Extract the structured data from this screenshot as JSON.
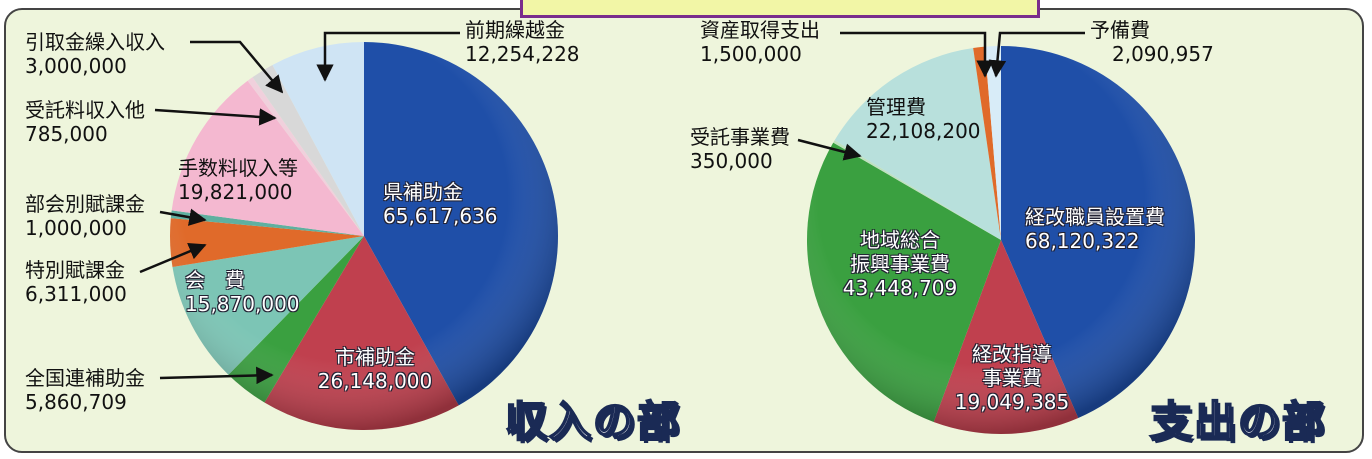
{
  "chart_data": [
    {
      "type": "pie",
      "title": "収入の部",
      "categories": [
        "県補助金",
        "市補助金",
        "全国連補助金",
        "会　費",
        "特別賦課金",
        "部会別賦課金",
        "手数料収入等",
        "受託料収入他",
        "引取金繰入収入",
        "前期繰越金"
      ],
      "values": [
        65617636,
        26148000,
        5860709,
        15870000,
        6311000,
        1000000,
        19821000,
        785000,
        3000000,
        12254228
      ],
      "value_labels": [
        "65,617,636",
        "26,148,000",
        "5,860,709",
        "15,870,000",
        "6,311,000",
        "1,000,000",
        "19,821,000",
        "785,000",
        "3,000,000",
        "12,254,228"
      ],
      "colors": [
        "#1f4fa8",
        "#c0404e",
        "#3aa040",
        "#7cc5b5",
        "#e06a2a",
        "#5fb0a0",
        "#f4b8d0",
        "#f0d0dc",
        "#d8d8d8",
        "#cfe4f4"
      ]
    },
    {
      "type": "pie",
      "title": "支出の部",
      "categories": [
        "経改職員設置費",
        "経改指導\n事業費",
        "地域総合\n振興事業費",
        "受託事業費",
        "管理費",
        "資産取得支出",
        "予備費"
      ],
      "values": [
        68120322,
        19049385,
        43448709,
        350000,
        22108200,
        1500000,
        2090957
      ],
      "value_labels": [
        "68,120,322",
        "19,049,385",
        "43,448,709",
        "350,000",
        "22,108,200",
        "1,500,000",
        "2,090,957"
      ],
      "colors": [
        "#1f4fa8",
        "#c0404e",
        "#3aa040",
        "#bfe0c0",
        "#b8e0dc",
        "#e06a2a",
        "#d8ecf8"
      ]
    }
  ]
}
